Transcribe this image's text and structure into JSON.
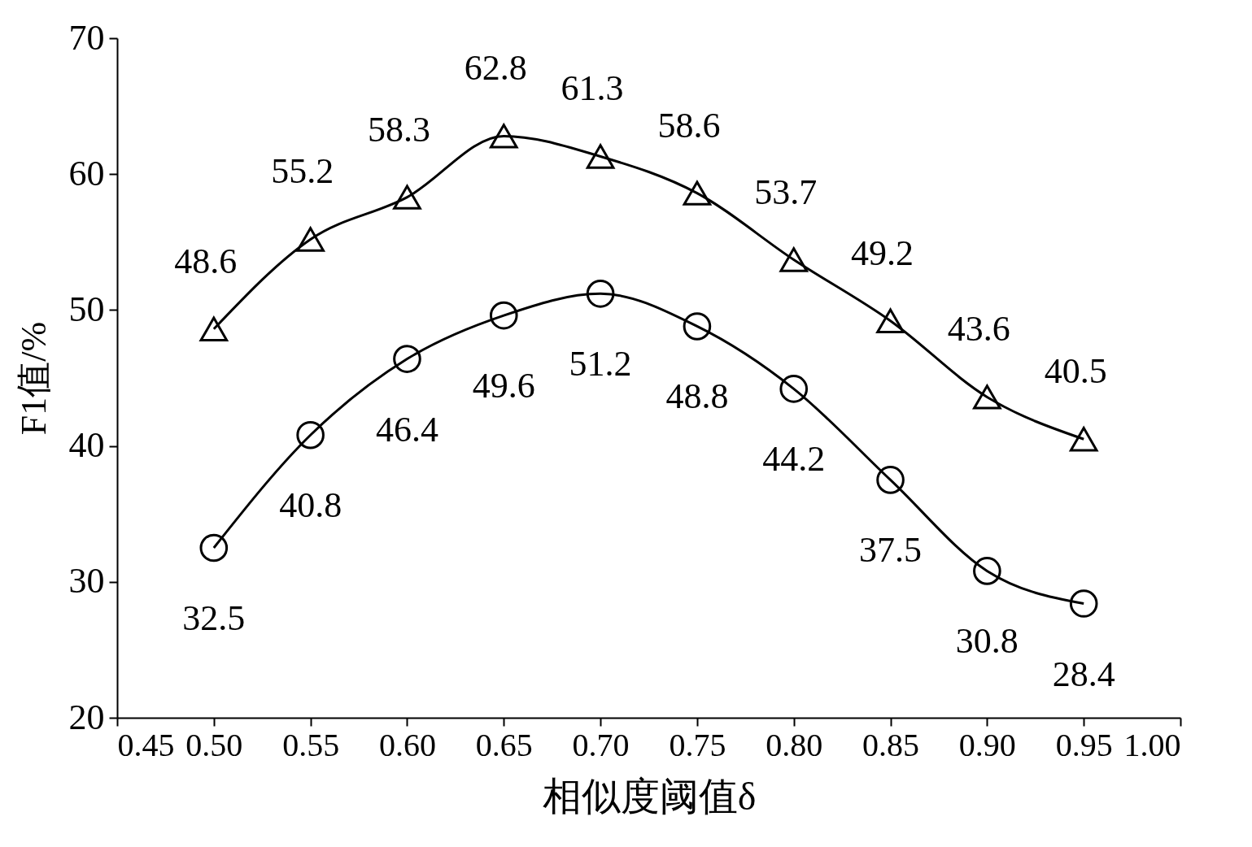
{
  "chart_data": {
    "type": "line",
    "xlabel": "相似度阈值δ",
    "ylabel": "F1值/%",
    "x": [
      0.5,
      0.55,
      0.6,
      0.65,
      0.7,
      0.75,
      0.8,
      0.85,
      0.9,
      0.95
    ],
    "series": [
      {
        "color": "#000000",
        "marker": "triangle",
        "values": [
          48.6,
          55.2,
          58.3,
          62.8,
          61.3,
          58.6,
          53.7,
          49.2,
          43.6,
          40.5
        ]
      },
      {
        "color": "#000000",
        "marker": "circle",
        "values": [
          32.5,
          40.8,
          46.4,
          49.6,
          51.2,
          48.8,
          44.2,
          37.5,
          30.8,
          28.4
        ]
      }
    ],
    "xlim": [
      0.45,
      1.0
    ],
    "xticks": [
      {
        "value": 0.45,
        "label": "0.45"
      },
      {
        "value": 0.5,
        "label": "0.50"
      },
      {
        "value": 0.55,
        "label": "0.55"
      },
      {
        "value": 0.6,
        "label": "0.60"
      },
      {
        "value": 0.65,
        "label": "0.65"
      },
      {
        "value": 0.7,
        "label": "0.70"
      },
      {
        "value": 0.75,
        "label": "0.75"
      },
      {
        "value": 0.8,
        "label": "0.80"
      },
      {
        "value": 0.85,
        "label": "0.85"
      },
      {
        "value": 0.9,
        "label": "0.90"
      },
      {
        "value": 0.95,
        "label": "0.95"
      },
      {
        "value": 1.0,
        "label": "1.00"
      }
    ],
    "ylim": [
      20,
      70
    ],
    "yticks": [
      20,
      30,
      40,
      50,
      60,
      70
    ],
    "data_labels": true,
    "line_style": "solid",
    "grid": false
  }
}
